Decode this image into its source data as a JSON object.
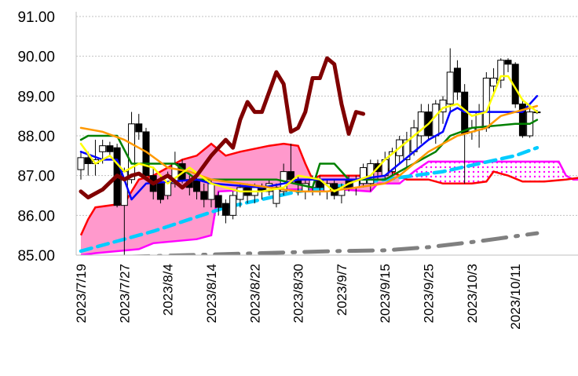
{
  "chart_data": {
    "type": "candlestick",
    "title": "",
    "ylim": [
      85,
      91
    ],
    "y_ticks": [
      "85.00",
      "86.00",
      "87.00",
      "88.00",
      "89.00",
      "90.00",
      "91.00"
    ],
    "x_tick_labels": [
      "2023/7/19",
      "2023/7/27",
      "2023/8/4",
      "2023/8/14",
      "2023/8/22",
      "2023/8/30",
      "2023/9/7",
      "2023/9/15",
      "2023/9/25",
      "2023/10/3",
      "2023/10/11"
    ],
    "x_tick_every": 6,
    "grid": true,
    "candles": [
      [
        87.15,
        87.6,
        86.9,
        87.45
      ],
      [
        87.45,
        87.6,
        87.0,
        87.3
      ],
      [
        87.3,
        87.9,
        87.0,
        87.4
      ],
      [
        87.6,
        87.9,
        87.3,
        87.75
      ],
      [
        87.75,
        87.85,
        87.5,
        87.6
      ],
      [
        87.7,
        87.8,
        86.2,
        86.25
      ],
      [
        86.25,
        87.2,
        85.0,
        87.1
      ],
      [
        86.9,
        88.6,
        86.8,
        88.3
      ],
      [
        88.3,
        88.55,
        87.9,
        88.1
      ],
      [
        88.1,
        88.2,
        86.9,
        87.0
      ],
      [
        87.0,
        87.2,
        86.4,
        86.6
      ],
      [
        86.8,
        87.0,
        86.3,
        86.4
      ],
      [
        86.5,
        87.1,
        86.4,
        87.0
      ],
      [
        86.8,
        87.6,
        86.7,
        87.3
      ],
      [
        87.3,
        87.4,
        86.8,
        86.9
      ],
      [
        86.9,
        87.0,
        86.5,
        86.7
      ],
      [
        86.9,
        87.0,
        86.4,
        86.6
      ],
      [
        86.6,
        86.8,
        86.2,
        86.4
      ],
      [
        86.4,
        86.9,
        86.2,
        86.8
      ],
      [
        86.5,
        86.6,
        86.0,
        86.2
      ],
      [
        86.3,
        86.4,
        85.8,
        86.0
      ],
      [
        86.0,
        86.6,
        85.9,
        86.5
      ],
      [
        86.4,
        86.8,
        86.2,
        86.7
      ],
      [
        86.7,
        86.8,
        86.3,
        86.5
      ],
      [
        86.5,
        86.8,
        86.3,
        86.7
      ],
      [
        86.7,
        86.8,
        86.4,
        86.6
      ],
      [
        86.6,
        86.9,
        86.5,
        86.8
      ],
      [
        86.3,
        86.8,
        86.2,
        86.7
      ],
      [
        86.6,
        87.3,
        86.5,
        87.1
      ],
      [
        87.1,
        87.8,
        86.8,
        86.9
      ],
      [
        86.9,
        87.0,
        86.5,
        86.8
      ],
      [
        86.6,
        86.9,
        86.4,
        86.8
      ],
      [
        86.7,
        87.0,
        86.5,
        86.9
      ],
      [
        86.9,
        87.0,
        86.5,
        86.7
      ],
      [
        86.6,
        86.9,
        86.4,
        86.8
      ],
      [
        86.8,
        86.9,
        86.4,
        86.5
      ],
      [
        86.5,
        86.8,
        86.3,
        86.7
      ],
      [
        86.9,
        87.0,
        86.6,
        86.7
      ],
      [
        86.7,
        87.0,
        86.5,
        86.9
      ],
      [
        86.8,
        87.3,
        86.7,
        87.2
      ],
      [
        86.8,
        87.4,
        86.6,
        87.3
      ],
      [
        87.3,
        87.4,
        86.9,
        87.1
      ],
      [
        87.0,
        87.6,
        86.9,
        87.4
      ],
      [
        87.1,
        87.7,
        87.0,
        87.6
      ],
      [
        87.5,
        88.0,
        87.3,
        87.9
      ],
      [
        87.4,
        88.1,
        87.2,
        87.9
      ],
      [
        87.6,
        88.4,
        87.5,
        88.2
      ],
      [
        88.0,
        88.8,
        87.8,
        88.6
      ],
      [
        88.6,
        88.8,
        87.9,
        88.0
      ],
      [
        88.0,
        88.9,
        87.8,
        88.8
      ],
      [
        88.6,
        89.0,
        88.3,
        88.9
      ],
      [
        88.8,
        90.2,
        88.6,
        89.6
      ],
      [
        89.7,
        89.9,
        88.9,
        89.1
      ],
      [
        89.1,
        89.3,
        86.8,
        88.05
      ],
      [
        88.1,
        88.4,
        87.9,
        88.2
      ],
      [
        88.15,
        88.8,
        87.7,
        88.6
      ],
      [
        88.2,
        89.6,
        88.1,
        89.45
      ],
      [
        89.25,
        89.7,
        89.0,
        89.45
      ],
      [
        89.4,
        89.95,
        89.2,
        89.9
      ],
      [
        89.9,
        89.95,
        89.6,
        89.8
      ],
      [
        89.8,
        89.85,
        88.7,
        88.8
      ],
      [
        88.8,
        88.9,
        87.95,
        88.0
      ],
      [
        88.0,
        88.7,
        87.95,
        88.6
      ],
      [
        88.6,
        88.65,
        88.55,
        88.6
      ]
    ],
    "series": [
      {
        "name": "green",
        "color": "#008000",
        "dash": "",
        "width": 2.5,
        "points": [
          [
            0,
            87.9
          ],
          [
            1,
            88.0
          ],
          [
            5,
            88.0
          ],
          [
            7,
            87.3
          ],
          [
            13,
            87.3
          ],
          [
            16,
            86.9
          ],
          [
            27,
            86.9
          ],
          [
            32,
            86.7
          ],
          [
            33,
            87.3
          ],
          [
            35,
            87.3
          ],
          [
            37,
            86.9
          ],
          [
            42,
            86.9
          ],
          [
            45,
            87.2
          ],
          [
            47,
            87.4
          ],
          [
            49,
            87.6
          ],
          [
            51,
            88.0
          ],
          [
            54,
            88.2
          ],
          [
            60,
            88.3
          ],
          [
            62,
            88.3
          ],
          [
            63,
            88.4
          ]
        ]
      },
      {
        "name": "blue",
        "color": "#0000ff",
        "dash": "",
        "width": 2.5,
        "points": [
          [
            0,
            87.6
          ],
          [
            3,
            87.4
          ],
          [
            5,
            87.4
          ],
          [
            7,
            86.4
          ],
          [
            9,
            86.8
          ],
          [
            16,
            86.9
          ],
          [
            18,
            86.8
          ],
          [
            25,
            86.7
          ],
          [
            28,
            86.8
          ],
          [
            30,
            86.9
          ],
          [
            34,
            86.9
          ],
          [
            38,
            86.9
          ],
          [
            42,
            87.0
          ],
          [
            44,
            87.3
          ],
          [
            46,
            87.6
          ],
          [
            48,
            87.9
          ],
          [
            50,
            88.1
          ],
          [
            51,
            88.6
          ],
          [
            52,
            88.7
          ],
          [
            53,
            88.6
          ],
          [
            58,
            88.6
          ],
          [
            61,
            88.6
          ],
          [
            63,
            89.0
          ]
        ]
      },
      {
        "name": "orange",
        "color": "#ff9900",
        "dash": "",
        "width": 2.5,
        "points": [
          [
            0,
            88.2
          ],
          [
            3,
            88.1
          ],
          [
            6,
            87.9
          ],
          [
            9,
            87.6
          ],
          [
            12,
            87.2
          ],
          [
            15,
            87.1
          ],
          [
            18,
            86.9
          ],
          [
            22,
            86.8
          ],
          [
            26,
            86.7
          ],
          [
            30,
            86.6
          ],
          [
            34,
            86.6
          ],
          [
            38,
            86.7
          ],
          [
            42,
            86.8
          ],
          [
            44,
            87.0
          ],
          [
            46,
            87.3
          ],
          [
            48,
            87.6
          ],
          [
            50,
            87.8
          ],
          [
            52,
            88.0
          ],
          [
            54,
            88.1
          ],
          [
            56,
            88.2
          ],
          [
            58,
            88.5
          ],
          [
            63,
            88.75
          ]
        ]
      },
      {
        "name": "yellow",
        "color": "#ffff00",
        "dash": "",
        "width": 2.5,
        "points": [
          [
            0,
            87.8
          ],
          [
            2,
            87.3
          ],
          [
            4,
            87.5
          ],
          [
            6,
            87.1
          ],
          [
            8,
            87.3
          ],
          [
            10,
            87.2
          ],
          [
            12,
            86.8
          ],
          [
            15,
            87.2
          ],
          [
            18,
            86.8
          ],
          [
            22,
            86.6
          ],
          [
            25,
            86.6
          ],
          [
            28,
            86.7
          ],
          [
            30,
            87.0
          ],
          [
            33,
            86.9
          ],
          [
            35,
            86.6
          ],
          [
            37,
            86.8
          ],
          [
            40,
            87.0
          ],
          [
            42,
            87.4
          ],
          [
            44,
            87.7
          ],
          [
            46,
            88.0
          ],
          [
            48,
            88.3
          ],
          [
            50,
            88.7
          ],
          [
            52,
            88.8
          ],
          [
            54,
            88.5
          ],
          [
            56,
            88.6
          ],
          [
            58,
            89.5
          ],
          [
            59,
            89.5
          ],
          [
            61,
            88.9
          ],
          [
            63,
            88.6
          ]
        ]
      },
      {
        "name": "chikou",
        "color": "#800000",
        "dash": "",
        "width": 5,
        "points": [
          [
            0,
            86.6
          ],
          [
            1,
            86.45
          ],
          [
            3,
            86.65
          ],
          [
            5,
            87.0
          ],
          [
            6,
            86.9
          ],
          [
            7,
            87.0
          ],
          [
            8,
            87.05
          ],
          [
            10,
            86.8
          ],
          [
            12,
            87.0
          ],
          [
            14,
            86.7
          ],
          [
            16,
            87.0
          ],
          [
            18,
            87.5
          ],
          [
            20,
            87.9
          ],
          [
            21,
            87.7
          ],
          [
            22,
            88.4
          ],
          [
            23,
            88.85
          ],
          [
            24,
            88.6
          ],
          [
            25,
            88.6
          ],
          [
            27,
            89.6
          ],
          [
            28,
            89.3
          ],
          [
            29,
            88.1
          ],
          [
            30,
            88.2
          ],
          [
            31,
            88.6
          ],
          [
            32,
            89.45
          ],
          [
            33,
            89.45
          ],
          [
            34,
            89.95
          ],
          [
            35,
            89.8
          ],
          [
            36,
            88.8
          ],
          [
            37,
            88.05
          ],
          [
            38,
            88.6
          ],
          [
            39,
            88.55
          ]
        ]
      },
      {
        "name": "cyan",
        "color": "#00ccff",
        "dash": "14,8",
        "width": 4.5,
        "points": [
          [
            0,
            85.1
          ],
          [
            10,
            85.6
          ],
          [
            20,
            86.2
          ],
          [
            30,
            86.6
          ],
          [
            40,
            86.85
          ],
          [
            50,
            87.1
          ],
          [
            60,
            87.5
          ],
          [
            63,
            87.7
          ]
        ]
      },
      {
        "name": "gray",
        "color": "#808080",
        "dash": "30,12,3,12",
        "width": 5,
        "points": [
          [
            0,
            84.85
          ],
          [
            5,
            84.95
          ],
          [
            15,
            85.0
          ],
          [
            25,
            85.05
          ],
          [
            35,
            85.1
          ],
          [
            42,
            85.12
          ],
          [
            48,
            85.2
          ],
          [
            55,
            85.35
          ],
          [
            63,
            85.55
          ]
        ]
      }
    ],
    "cloud": {
      "span_a_color": "#ff0000",
      "span_b_color": "#ff00ff",
      "bull_fill": "#ff99cc",
      "bear_fill_dots": "#ff00ff",
      "fill_split_index": 44,
      "span_a": [
        [
          0,
          85.5
        ],
        [
          1,
          85.9
        ],
        [
          2,
          86.2
        ],
        [
          6,
          86.3
        ],
        [
          8,
          86.9
        ],
        [
          10,
          87.0
        ],
        [
          12,
          87.2
        ],
        [
          14,
          87.4
        ],
        [
          16,
          87.5
        ],
        [
          18,
          87.8
        ],
        [
          20,
          87.5
        ],
        [
          22,
          87.6
        ],
        [
          26,
          87.75
        ],
        [
          28,
          87.8
        ],
        [
          30,
          87.75
        ],
        [
          31,
          87.3
        ],
        [
          32,
          86.9
        ],
        [
          33,
          87.0
        ],
        [
          40,
          87.0
        ],
        [
          41,
          87.3
        ],
        [
          43,
          87.1
        ],
        [
          45,
          86.9
        ],
        [
          48,
          86.9
        ],
        [
          50,
          86.8
        ],
        [
          54,
          86.8
        ],
        [
          56,
          86.85
        ],
        [
          57,
          87.1
        ],
        [
          59,
          87.0
        ],
        [
          61,
          86.85
        ],
        [
          64,
          86.85
        ],
        [
          67,
          86.9
        ],
        [
          69,
          86.95
        ],
        [
          70,
          87.0
        ]
      ],
      "span_b": [
        [
          0,
          85.0
        ],
        [
          2,
          85.05
        ],
        [
          8,
          85.15
        ],
        [
          10,
          85.3
        ],
        [
          16,
          85.4
        ],
        [
          18,
          85.5
        ],
        [
          19,
          86.6
        ],
        [
          24,
          86.65
        ],
        [
          36,
          86.65
        ],
        [
          40,
          86.6
        ],
        [
          41,
          86.8
        ],
        [
          44,
          86.8
        ],
        [
          46,
          87.1
        ],
        [
          48,
          87.35
        ],
        [
          66,
          87.35
        ],
        [
          67,
          87.0
        ],
        [
          68,
          86.9
        ],
        [
          70,
          86.9
        ]
      ]
    }
  }
}
